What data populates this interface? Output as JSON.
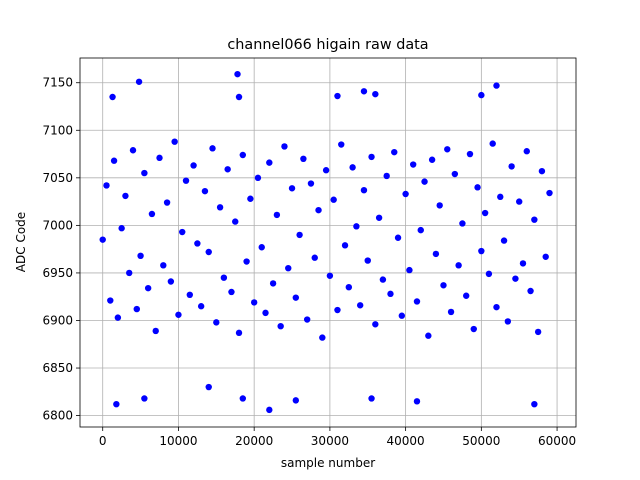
{
  "chart_data": {
    "type": "scatter",
    "title": "channel066 higain raw data",
    "x_label": "sample number",
    "y_label": "ADC Code",
    "color": "#0000ff",
    "grid": true,
    "xlim": [
      -3000,
      62500
    ],
    "ylim": [
      6788,
      7176
    ],
    "xticks": [
      0,
      10000,
      20000,
      30000,
      40000,
      50000,
      60000
    ],
    "yticks": [
      6800,
      6850,
      6900,
      6950,
      7000,
      7050,
      7100,
      7150
    ],
    "x": [
      0,
      500,
      1000,
      1500,
      2000,
      2500,
      3000,
      3500,
      4000,
      4500,
      5000,
      5500,
      6000,
      6500,
      7000,
      7500,
      8000,
      8500,
      9000,
      9500,
      10000,
      10500,
      11000,
      11500,
      12000,
      12500,
      13000,
      13500,
      14000,
      14500,
      15000,
      15500,
      16000,
      16500,
      17000,
      17500,
      18000,
      18500,
      19000,
      19500,
      20000,
      20500,
      21000,
      21500,
      22000,
      22500,
      23000,
      23500,
      24000,
      24500,
      25000,
      25500,
      26000,
      26500,
      27000,
      27500,
      28000,
      28500,
      29000,
      29500,
      30000,
      30500,
      31000,
      31500,
      32000,
      32500,
      33000,
      33500,
      34000,
      34500,
      35000,
      35500,
      36000,
      36500,
      37000,
      37500,
      38000,
      38500,
      39000,
      39500,
      40000,
      40500,
      41000,
      41500,
      42000,
      42500,
      43000,
      43500,
      44000,
      44500,
      45000,
      45500,
      46000,
      46500,
      47000,
      47500,
      48000,
      48500,
      49000,
      49500,
      50000,
      50500,
      51000,
      51500,
      52000,
      52500,
      53000,
      53500,
      54000,
      54500,
      55000,
      55500,
      56000,
      56500,
      57000,
      57500,
      58000,
      58500,
      59000,
      4800,
      17800,
      52000,
      1300,
      18000,
      31000,
      34500,
      36000,
      50000,
      22000,
      1800,
      41500,
      14000,
      57000,
      25500,
      35500,
      5500,
      18500
    ],
    "values": [
      6985,
      7042,
      6921,
      7068,
      6903,
      6997,
      7031,
      6950,
      7079,
      6912,
      6968,
      7055,
      6934,
      7012,
      6889,
      7071,
      6958,
      7024,
      6941,
      7088,
      6906,
      6993,
      7047,
      6927,
      7063,
      6981,
      6915,
      7036,
      6972,
      7081,
      6898,
      7019,
      6945,
      7059,
      6930,
      7004,
      6887,
      7074,
      6962,
      7028,
      6919,
      7050,
      6977,
      6908,
      7066,
      6939,
      7011,
      6894,
      7083,
      6955,
      7039,
      6924,
      6990,
      7070,
      6901,
      7044,
      6966,
      7016,
      6882,
      7058,
      6947,
      7027,
      6911,
      7085,
      6979,
      6935,
      7061,
      6999,
      6916,
      7037,
      6963,
      7072,
      6896,
      7008,
      6943,
      7052,
      6928,
      7077,
      6987,
      6905,
      7033,
      6953,
      7064,
      6920,
      6995,
      7046,
      6884,
      7069,
      6970,
      7021,
      6937,
      7080,
      6909,
      7054,
      6958,
      7002,
      6926,
      7075,
      6891,
      7040,
      6973,
      7013,
      6949,
      7086,
      6914,
      7030,
      6984,
      6899,
      7062,
      6944,
      7025,
      6960,
      7078,
      6931,
      7006,
      6888,
      7057,
      6967,
      7034,
      7151,
      7159,
      7147,
      7135,
      7135,
      7136,
      7141,
      7138,
      7137,
      6806,
      6812,
      6815,
      6830,
      6812,
      6816,
      6818,
      6818,
      6818
    ]
  }
}
